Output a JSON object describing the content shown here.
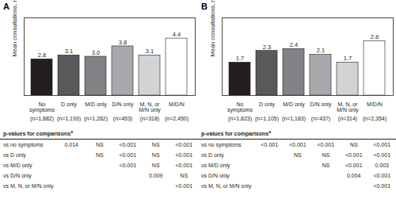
{
  "chart_data": [
    {
      "panel": "A",
      "type": "bar",
      "y_label": "Mean consultations, n",
      "categories": [
        "No symptoms",
        "D only",
        "M/D only",
        "D/N only",
        "M, N, or M/N only",
        "M/D/N"
      ],
      "n_labels": [
        "(n=1,882)",
        "(n=1,193)",
        "(n=1,282)",
        "(n=453)",
        "(n=318)",
        "(n=2,450)"
      ],
      "values": [
        2.8,
        3.1,
        3.0,
        3.8,
        3.1,
        4.4
      ],
      "value_labels": [
        "2.8",
        "3.1",
        "3.0",
        "3.8",
        "3.1",
        "4.4"
      ],
      "colors": [
        "#231f20",
        "#58595b",
        "#808285",
        "#a7a9ac",
        "#d1d3d4",
        "#ffffff"
      ],
      "ylim": [
        0,
        6
      ],
      "tick_labels": "x",
      "data_labels": true,
      "pvalue_table": {
        "title": "p-values for comparisons",
        "title_note": "a",
        "rows": [
          {
            "label": "vs no symptoms",
            "values": [
              "0.014",
              "NS",
              "<0.001",
              "NS",
              "<0.001"
            ]
          },
          {
            "label": "vs D only",
            "values": [
              null,
              "NS",
              "<0.001",
              "NS",
              "<0.001"
            ]
          },
          {
            "label": "vs M/D only",
            "values": [
              null,
              null,
              "<0.001",
              "NS",
              "<0.001"
            ]
          },
          {
            "label": "vs D/N only",
            "values": [
              null,
              null,
              null,
              "0.009",
              "NS"
            ]
          },
          {
            "label": "vs M, N, or M/N only",
            "values": [
              null,
              null,
              null,
              null,
              "<0.001"
            ]
          }
        ]
      }
    },
    {
      "panel": "B",
      "type": "bar",
      "y_label": "Mean consultations, n",
      "categories": [
        "No symptoms",
        "D only",
        "M/D only",
        "D/N only",
        "M, N, or M/N only",
        "M/D/N"
      ],
      "n_labels": [
        "(n=1,823)",
        "(n=1,105)",
        "(n=1,183)",
        "(n=437)",
        "(n=314)",
        "(n=2,354)"
      ],
      "values": [
        1.7,
        2.3,
        2.4,
        2.1,
        1.7,
        2.8
      ],
      "colors": [
        "#231f20",
        "#58595b",
        "#808285",
        "#a7a9ac",
        "#d1d3d4",
        "#ffffff"
      ],
      "ylim": [
        0,
        4
      ],
      "tick_labels": "x",
      "data_labels": true,
      "pvalue_table": {
        "title": "p-values for comparisons",
        "title_note": "a",
        "rows": [
          {
            "label": "vs no symptoms",
            "values": [
              "<0.001",
              "<0.001",
              "<0.001",
              "NS",
              "<0.001"
            ]
          },
          {
            "label": "vs D only",
            "values": [
              null,
              "NS",
              "NS",
              "<0.001",
              "<0.001"
            ]
          },
          {
            "label": "vs M/D only",
            "values": [
              null,
              null,
              "NS",
              "<0.001",
              "0.003"
            ]
          },
          {
            "label": "vs D/N only",
            "values": [
              null,
              null,
              null,
              "0.004",
              "<0.001"
            ]
          },
          {
            "label": "vs M, N, or M/N only",
            "values": [
              null,
              null,
              null,
              null,
              "<0.001"
            ]
          }
        ]
      }
    }
  ]
}
